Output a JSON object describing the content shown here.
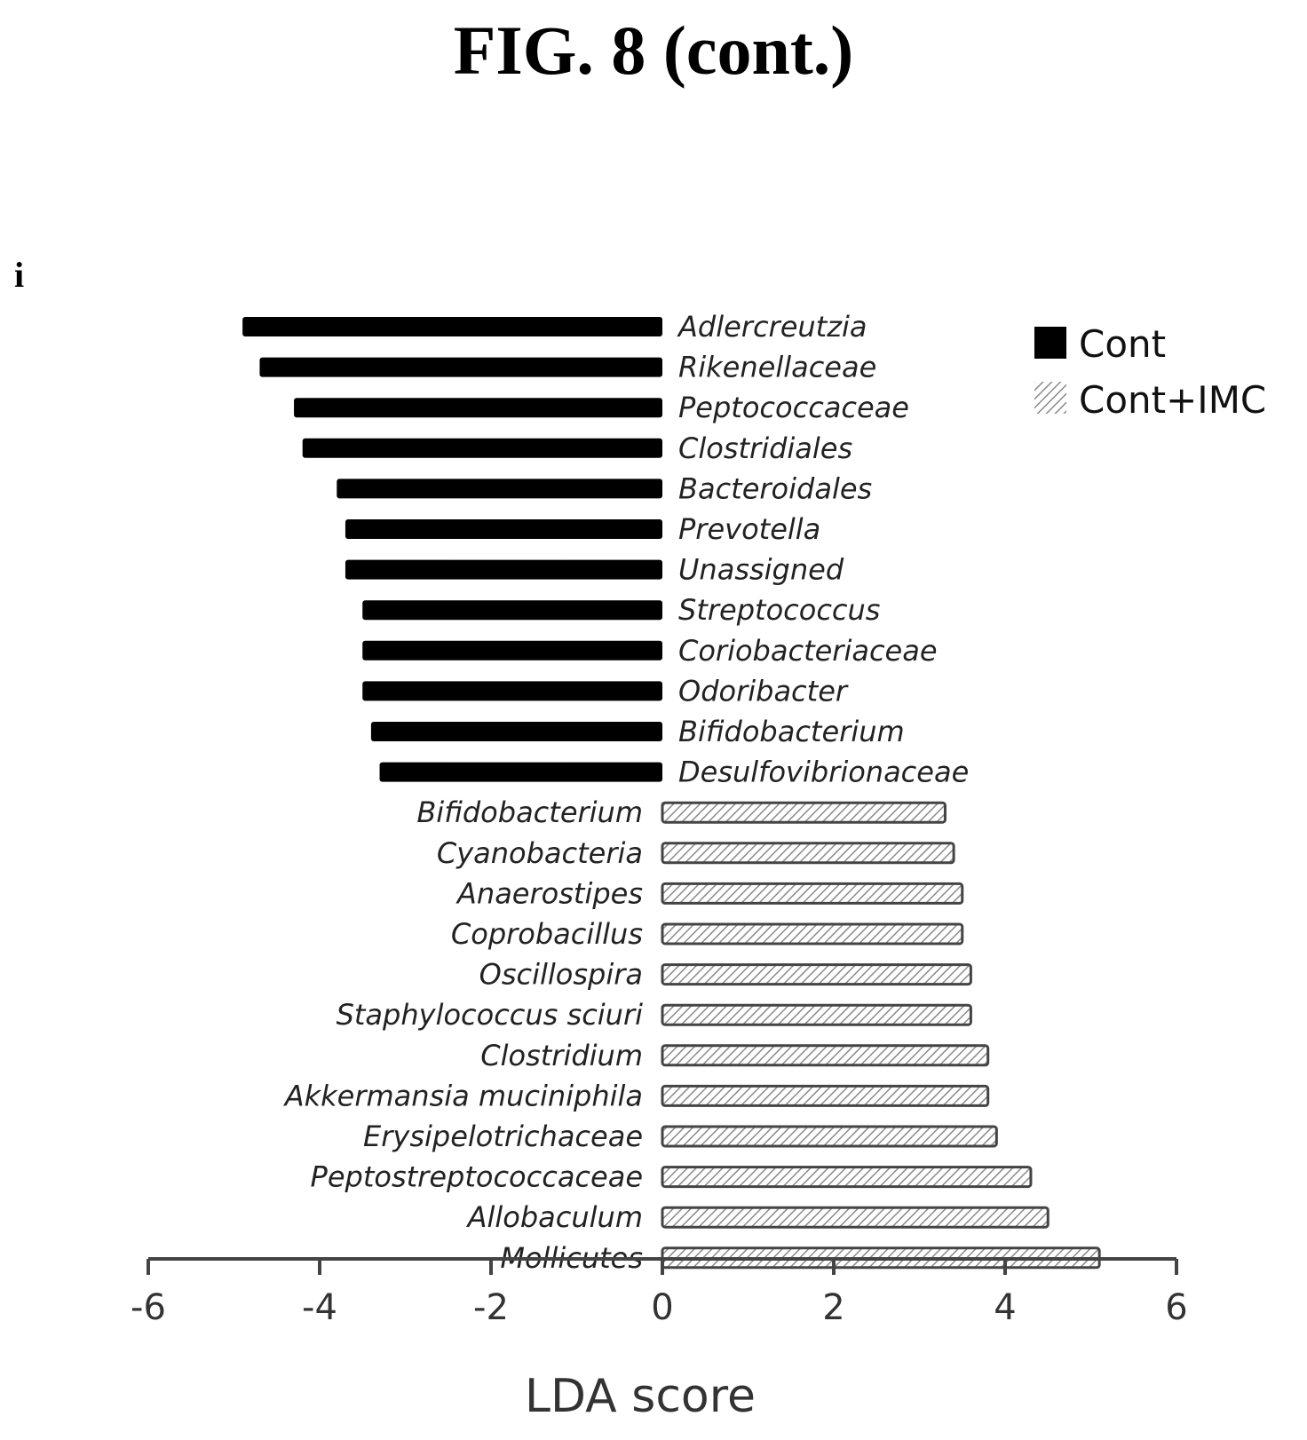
{
  "figure": {
    "title": "FIG. 8 (cont.)",
    "panel_label": "i"
  },
  "colors": {
    "Cont": "#000000",
    "Cont+IMC": "#ffffff",
    "Cont+IMC_hatch": "#8a8a8a"
  },
  "chart_data": {
    "type": "bar",
    "orientation": "horizontal",
    "xlabel": "LDA score",
    "xlim": [
      -6,
      6
    ],
    "xticks": [
      -6,
      -4,
      -2,
      0,
      2,
      4,
      6
    ],
    "xtick_labels": [
      "-6",
      "-4",
      "-2",
      "0",
      "2",
      "4",
      "6"
    ],
    "legend": {
      "placement": "top-right",
      "entries": [
        "Cont",
        "Cont+IMC"
      ]
    },
    "bars": [
      {
        "label": "Adlercreutzia",
        "value": -4.9,
        "group": "Cont"
      },
      {
        "label": "Rikenellaceae",
        "value": -4.7,
        "group": "Cont"
      },
      {
        "label": "Peptococcaceae",
        "value": -4.3,
        "group": "Cont"
      },
      {
        "label": "Clostridiales",
        "value": -4.2,
        "group": "Cont"
      },
      {
        "label": "Bacteroidales",
        "value": -3.8,
        "group": "Cont"
      },
      {
        "label": "Prevotella",
        "value": -3.7,
        "group": "Cont"
      },
      {
        "label": "Unassigned",
        "value": -3.7,
        "group": "Cont"
      },
      {
        "label": "Streptococcus",
        "value": -3.5,
        "group": "Cont"
      },
      {
        "label": "Coriobacteriaceae",
        "value": -3.5,
        "group": "Cont"
      },
      {
        "label": "Odoribacter",
        "value": -3.5,
        "group": "Cont"
      },
      {
        "label": "Bifidobacterium",
        "value": -3.4,
        "group": "Cont"
      },
      {
        "label": "Desulfovibrionaceae",
        "value": -3.3,
        "group": "Cont"
      },
      {
        "label": "Bifidobacterium",
        "value": 3.3,
        "group": "Cont+IMC"
      },
      {
        "label": "Cyanobacteria",
        "value": 3.4,
        "group": "Cont+IMC"
      },
      {
        "label": "Anaerostipes",
        "value": 3.5,
        "group": "Cont+IMC"
      },
      {
        "label": "Coprobacillus",
        "value": 3.5,
        "group": "Cont+IMC"
      },
      {
        "label": "Oscillospira",
        "value": 3.6,
        "group": "Cont+IMC"
      },
      {
        "label": "Staphylococcus sciuri",
        "value": 3.6,
        "group": "Cont+IMC"
      },
      {
        "label": "Clostridium",
        "value": 3.8,
        "group": "Cont+IMC"
      },
      {
        "label": "Akkermansia muciniphila",
        "value": 3.8,
        "group": "Cont+IMC"
      },
      {
        "label": "Erysipelotrichaceae",
        "value": 3.9,
        "group": "Cont+IMC"
      },
      {
        "label": "Peptostreptococcaceae",
        "value": 4.3,
        "group": "Cont+IMC"
      },
      {
        "label": "Allobaculum",
        "value": 4.5,
        "group": "Cont+IMC"
      },
      {
        "label": "Mollicutes",
        "value": 5.1,
        "group": "Cont+IMC"
      }
    ]
  }
}
